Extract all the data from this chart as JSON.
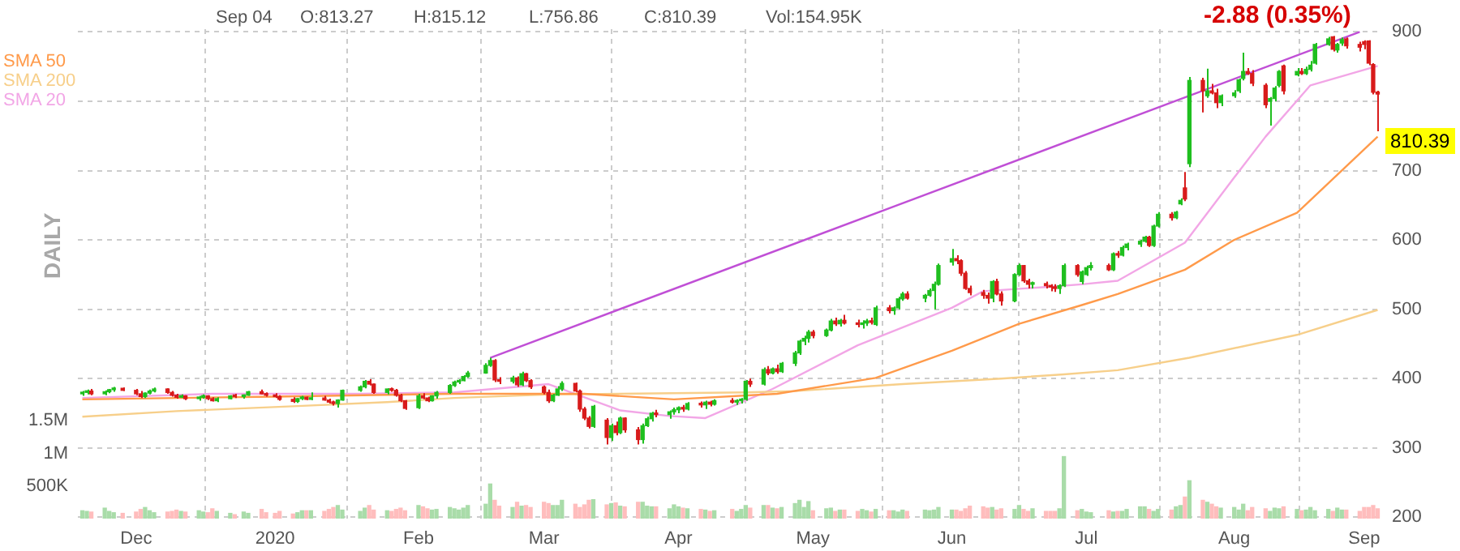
{
  "chart_data": {
    "type": "candlestick",
    "annotations": [
      "Sep 04",
      "O:813.27",
      "H:815.12",
      "L:756.86",
      "C:810.39",
      "Vol:154.95K",
      "-2.88 (0.35%)",
      "810.39",
      "DAILY"
    ],
    "x": [
      "2019-11-20",
      "2019-11-21",
      "2019-11-22",
      "2019-11-25",
      "2019-11-26",
      "2019-11-27",
      "2019-11-29",
      "2019-12-02",
      "2019-12-03",
      "2019-12-04",
      "2019-12-05",
      "2019-12-06",
      "2019-12-09",
      "2019-12-10",
      "2019-12-11",
      "2019-12-12",
      "2019-12-13",
      "2019-12-16",
      "2019-12-17",
      "2019-12-18",
      "2019-12-19",
      "2019-12-20",
      "2019-12-23",
      "2019-12-24",
      "2019-12-26",
      "2019-12-27",
      "2019-12-30",
      "2019-12-31",
      "2020-01-02",
      "2020-01-03",
      "2020-01-06",
      "2020-01-07",
      "2020-01-08",
      "2020-01-09",
      "2020-01-10",
      "2020-01-13",
      "2020-01-14",
      "2020-01-15",
      "2020-01-16",
      "2020-01-17",
      "2020-01-21",
      "2020-01-22",
      "2020-01-23",
      "2020-01-24",
      "2020-01-27",
      "2020-01-28",
      "2020-01-29",
      "2020-01-30",
      "2020-01-31",
      "2020-02-03",
      "2020-02-04",
      "2020-02-05",
      "2020-02-06",
      "2020-02-07",
      "2020-02-10",
      "2020-02-11",
      "2020-02-12",
      "2020-02-13",
      "2020-02-14",
      "2020-02-18",
      "2020-02-19",
      "2020-02-20",
      "2020-02-21",
      "2020-02-24",
      "2020-02-25",
      "2020-02-26",
      "2020-02-27",
      "2020-02-28",
      "2020-03-02",
      "2020-03-03",
      "2020-03-04",
      "2020-03-05",
      "2020-03-06",
      "2020-03-09",
      "2020-03-10",
      "2020-03-11",
      "2020-03-12",
      "2020-03-13",
      "2020-03-16",
      "2020-03-17",
      "2020-03-18",
      "2020-03-19",
      "2020-03-20",
      "2020-03-23",
      "2020-03-24",
      "2020-03-25",
      "2020-03-26",
      "2020-03-27",
      "2020-03-30",
      "2020-03-31",
      "2020-04-01",
      "2020-04-02",
      "2020-04-03",
      "2020-04-06",
      "2020-04-07",
      "2020-04-08",
      "2020-04-09",
      "2020-04-13",
      "2020-04-14",
      "2020-04-15",
      "2020-04-16",
      "2020-04-17",
      "2020-04-20",
      "2020-04-21",
      "2020-04-22",
      "2020-04-23",
      "2020-04-24",
      "2020-04-27",
      "2020-04-28",
      "2020-04-29",
      "2020-04-30",
      "2020-05-01",
      "2020-05-04",
      "2020-05-05",
      "2020-05-06",
      "2020-05-07",
      "2020-05-08",
      "2020-05-11",
      "2020-05-12",
      "2020-05-13",
      "2020-05-14",
      "2020-05-15",
      "2020-05-18",
      "2020-05-19",
      "2020-05-20",
      "2020-05-21",
      "2020-05-22",
      "2020-05-26",
      "2020-05-27",
      "2020-05-28",
      "2020-05-29",
      "2020-06-01",
      "2020-06-02",
      "2020-06-03",
      "2020-06-04",
      "2020-06-05",
      "2020-06-08",
      "2020-06-09",
      "2020-06-10",
      "2020-06-11",
      "2020-06-12",
      "2020-06-15",
      "2020-06-16",
      "2020-06-17",
      "2020-06-18",
      "2020-06-19",
      "2020-06-22",
      "2020-06-23",
      "2020-06-24",
      "2020-06-25",
      "2020-06-26",
      "2020-06-29",
      "2020-06-30",
      "2020-07-01",
      "2020-07-02",
      "2020-07-06",
      "2020-07-07",
      "2020-07-08",
      "2020-07-09",
      "2020-07-10",
      "2020-07-13",
      "2020-07-14",
      "2020-07-15",
      "2020-07-16",
      "2020-07-17",
      "2020-07-20",
      "2020-07-21",
      "2020-07-22",
      "2020-07-23",
      "2020-07-24",
      "2020-07-27",
      "2020-07-28",
      "2020-07-29",
      "2020-07-30",
      "2020-07-31",
      "2020-08-03",
      "2020-08-04",
      "2020-08-05",
      "2020-08-06",
      "2020-08-07",
      "2020-08-10",
      "2020-08-11",
      "2020-08-12",
      "2020-08-13",
      "2020-08-14",
      "2020-08-17",
      "2020-08-18",
      "2020-08-19",
      "2020-08-20",
      "2020-08-21",
      "2020-08-24",
      "2020-08-25",
      "2020-08-26",
      "2020-08-27",
      "2020-08-28",
      "2020-08-31",
      "2020-09-01",
      "2020-09-02",
      "2020-09-03",
      "2020-09-04"
    ],
    "ohlc": [
      [
        378,
        382,
        375,
        380
      ],
      [
        380,
        384,
        377,
        382
      ],
      [
        382,
        385,
        376,
        378
      ],
      [
        378,
        383,
        376,
        381
      ],
      [
        381,
        385,
        379,
        384
      ],
      [
        384,
        388,
        381,
        386
      ],
      [
        386,
        387,
        382,
        383
      ],
      [
        383,
        385,
        376,
        378
      ],
      [
        378,
        382,
        372,
        374
      ],
      [
        374,
        380,
        372,
        379
      ],
      [
        379,
        384,
        377,
        382
      ],
      [
        382,
        387,
        380,
        385
      ],
      [
        385,
        386,
        378,
        380
      ],
      [
        380,
        382,
        374,
        376
      ],
      [
        376,
        378,
        371,
        373
      ],
      [
        373,
        377,
        372,
        375
      ],
      [
        375,
        376,
        369,
        371
      ],
      [
        371,
        375,
        368,
        373
      ],
      [
        373,
        377,
        371,
        375
      ],
      [
        375,
        376,
        369,
        371
      ],
      [
        371,
        373,
        367,
        368
      ],
      [
        368,
        373,
        366,
        371
      ],
      [
        371,
        376,
        370,
        375
      ],
      [
        375,
        378,
        372,
        374
      ],
      [
        374,
        377,
        371,
        376
      ],
      [
        376,
        382,
        375,
        381
      ],
      [
        381,
        384,
        377,
        378
      ],
      [
        378,
        380,
        374,
        376
      ],
      [
        376,
        379,
        372,
        374
      ],
      [
        374,
        376,
        368,
        370
      ],
      [
        370,
        373,
        365,
        367
      ],
      [
        367,
        372,
        365,
        371
      ],
      [
        371,
        375,
        369,
        373
      ],
      [
        373,
        374,
        369,
        370
      ],
      [
        370,
        380,
        369,
        372
      ],
      [
        372,
        375,
        368,
        369
      ],
      [
        369,
        371,
        364,
        366
      ],
      [
        366,
        368,
        361,
        364
      ],
      [
        364,
        370,
        358,
        369
      ],
      [
        369,
        384,
        368,
        383
      ],
      [
        383,
        390,
        381,
        388
      ],
      [
        388,
        398,
        386,
        396
      ],
      [
        396,
        399,
        390,
        392
      ],
      [
        392,
        393,
        378,
        380
      ],
      [
        380,
        386,
        377,
        385
      ],
      [
        385,
        387,
        381,
        383
      ],
      [
        383,
        385,
        374,
        376
      ],
      [
        376,
        378,
        366,
        368
      ],
      [
        368,
        369,
        355,
        357
      ],
      [
        358,
        378,
        356,
        375
      ],
      [
        375,
        379,
        370,
        372
      ],
      [
        372,
        374,
        366,
        368
      ],
      [
        368,
        376,
        367,
        375
      ],
      [
        375,
        382,
        371,
        380
      ],
      [
        380,
        392,
        378,
        390
      ],
      [
        390,
        397,
        388,
        395
      ],
      [
        395,
        399,
        392,
        397
      ],
      [
        397,
        405,
        396,
        403
      ],
      [
        403,
        411,
        401,
        408
      ],
      [
        408,
        422,
        407,
        419
      ],
      [
        419,
        430,
        417,
        426
      ],
      [
        426,
        428,
        395,
        398
      ],
      [
        398,
        402,
        392,
        396
      ],
      [
        396,
        404,
        393,
        401
      ],
      [
        401,
        403,
        388,
        391
      ],
      [
        391,
        410,
        389,
        407
      ],
      [
        407,
        408,
        395,
        397
      ],
      [
        397,
        399,
        385,
        388
      ],
      [
        388,
        390,
        377,
        380
      ],
      [
        380,
        384,
        365,
        368
      ],
      [
        368,
        378,
        366,
        376
      ],
      [
        376,
        389,
        375,
        385
      ],
      [
        385,
        396,
        382,
        393
      ],
      [
        393,
        394,
        380,
        382
      ],
      [
        382,
        384,
        352,
        356
      ],
      [
        356,
        359,
        340,
        343
      ],
      [
        343,
        346,
        328,
        331
      ],
      [
        331,
        362,
        329,
        360
      ],
      [
        340,
        343,
        305,
        315
      ],
      [
        315,
        335,
        310,
        332
      ],
      [
        332,
        338,
        318,
        322
      ],
      [
        322,
        345,
        320,
        343
      ],
      [
        343,
        344,
        322,
        326
      ],
      [
        326,
        330,
        305,
        312
      ],
      [
        312,
        335,
        306,
        332
      ],
      [
        332,
        345,
        330,
        342
      ],
      [
        342,
        352,
        338,
        350
      ],
      [
        350,
        355,
        344,
        348
      ],
      [
        348,
        354,
        342,
        352
      ],
      [
        352,
        358,
        348,
        355
      ],
      [
        355,
        360,
        350,
        358
      ],
      [
        358,
        362,
        352,
        356
      ],
      [
        356,
        366,
        354,
        364
      ],
      [
        364,
        367,
        358,
        362
      ],
      [
        362,
        368,
        356,
        366
      ],
      [
        366,
        368,
        360,
        363
      ],
      [
        363,
        370,
        361,
        368
      ],
      [
        368,
        372,
        364,
        366
      ],
      [
        366,
        370,
        362,
        368
      ],
      [
        368,
        372,
        364,
        370
      ],
      [
        370,
        398,
        368,
        396
      ],
      [
        396,
        400,
        388,
        392
      ],
      [
        392,
        416,
        390,
        413
      ],
      [
        413,
        418,
        405,
        408
      ],
      [
        408,
        416,
        406,
        414
      ],
      [
        414,
        420,
        407,
        410
      ],
      [
        410,
        424,
        408,
        422
      ],
      [
        422,
        440,
        418,
        437
      ],
      [
        437,
        456,
        434,
        454
      ],
      [
        454,
        462,
        448,
        458
      ],
      [
        458,
        470,
        452,
        467
      ],
      [
        467,
        470,
        458,
        462
      ],
      [
        462,
        472,
        460,
        470
      ],
      [
        470,
        486,
        468,
        483
      ],
      [
        483,
        488,
        476,
        479
      ],
      [
        479,
        486,
        475,
        484
      ],
      [
        484,
        492,
        478,
        480
      ],
      [
        480,
        485,
        474,
        478
      ],
      [
        478,
        484,
        472,
        480
      ],
      [
        480,
        486,
        476,
        483
      ],
      [
        483,
        488,
        478,
        481
      ],
      [
        478,
        505,
        476,
        502
      ],
      [
        502,
        506,
        494,
        498
      ],
      [
        498,
        504,
        492,
        502
      ],
      [
        502,
        518,
        500,
        515
      ],
      [
        515,
        525,
        512,
        522
      ],
      [
        522,
        526,
        514,
        516
      ],
      [
        516,
        522,
        510,
        520
      ],
      [
        520,
        530,
        518,
        527
      ],
      [
        527,
        540,
        500,
        536
      ],
      [
        536,
        566,
        534,
        563
      ],
      [
        568,
        587,
        563,
        573
      ],
      [
        573,
        578,
        565,
        570
      ],
      [
        570,
        572,
        548,
        552
      ],
      [
        552,
        555,
        528,
        530
      ],
      [
        530,
        534,
        520,
        524
      ],
      [
        524,
        528,
        515,
        520
      ],
      [
        520,
        524,
        508,
        516
      ],
      [
        516,
        542,
        510,
        540
      ],
      [
        540,
        544,
        520,
        522
      ],
      [
        522,
        526,
        505,
        512
      ],
      [
        512,
        552,
        510,
        550
      ],
      [
        550,
        566,
        548,
        563
      ],
      [
        563,
        564,
        538,
        541
      ],
      [
        541,
        544,
        530,
        536
      ],
      [
        536,
        540,
        530,
        537
      ],
      [
        537,
        540,
        530,
        534
      ],
      [
        534,
        536,
        526,
        532
      ],
      [
        532,
        536,
        525,
        530
      ],
      [
        530,
        536,
        522,
        534
      ],
      [
        534,
        566,
        532,
        563
      ],
      [
        563,
        565,
        547,
        550
      ],
      [
        540,
        556,
        536,
        554
      ],
      [
        550,
        563,
        548,
        560
      ],
      [
        560,
        568,
        556,
        563
      ],
      [
        563,
        566,
        555,
        557
      ],
      [
        557,
        582,
        555,
        580
      ],
      [
        580,
        584,
        574,
        578
      ],
      [
        578,
        592,
        576,
        589
      ],
      [
        589,
        596,
        585,
        594
      ],
      [
        594,
        600,
        590,
        598
      ],
      [
        598,
        606,
        596,
        604
      ],
      [
        604,
        606,
        590,
        592
      ],
      [
        592,
        622,
        590,
        620
      ],
      [
        620,
        640,
        618,
        637
      ],
      [
        637,
        640,
        628,
        632
      ],
      [
        632,
        642,
        630,
        640
      ],
      [
        652,
        660,
        650,
        657
      ],
      [
        675,
        698,
        656,
        659
      ],
      [
        710,
        835,
        705,
        830
      ],
      [
        830,
        834,
        784,
        815
      ],
      [
        808,
        847,
        805,
        815
      ],
      [
        815,
        825,
        810,
        812
      ],
      [
        812,
        818,
        790,
        798
      ],
      [
        798,
        810,
        793,
        808
      ],
      [
        808,
        816,
        805,
        812
      ],
      [
        815,
        833,
        812,
        831
      ],
      [
        833,
        870,
        830,
        843
      ],
      [
        843,
        848,
        838,
        840
      ],
      [
        840,
        845,
        822,
        826
      ],
      [
        823,
        826,
        790,
        795
      ],
      [
        800,
        806,
        765,
        804
      ],
      [
        804,
        822,
        800,
        819
      ],
      [
        823,
        845,
        820,
        843
      ],
      [
        851,
        853,
        810,
        815
      ],
      [
        838,
        848,
        836,
        843
      ],
      [
        843,
        848,
        838,
        840
      ],
      [
        840,
        850,
        838,
        846
      ],
      [
        846,
        858,
        843,
        852
      ],
      [
        855,
        884,
        853,
        882
      ],
      [
        882,
        893,
        880,
        890
      ],
      [
        893,
        894,
        872,
        875
      ],
      [
        874,
        884,
        870,
        882
      ],
      [
        884,
        892,
        880,
        889
      ],
      [
        890,
        892,
        876,
        880
      ],
      [
        882,
        886,
        872,
        878
      ],
      [
        886,
        888,
        875,
        882
      ],
      [
        887,
        888,
        852,
        855
      ],
      [
        853,
        855,
        810,
        813
      ],
      [
        813.27,
        815.12,
        756.86,
        810.39
      ]
    ],
    "colors": [
      "#1fbf1f",
      "#1fbf1f",
      "#d81b1b",
      "#1fbf1f",
      "#1fbf1f",
      "#1fbf1f",
      "#d81b1b",
      "#d81b1b",
      "#d81b1b",
      "#1fbf1f",
      "#1fbf1f",
      "#1fbf1f",
      "#d81b1b",
      "#d81b1b",
      "#d81b1b",
      "#1fbf1f",
      "#d81b1b",
      "#1fbf1f",
      "#1fbf1f",
      "#d81b1b",
      "#d81b1b",
      "#1fbf1f",
      "#1fbf1f",
      "#d81b1b",
      "#1fbf1f",
      "#1fbf1f",
      "#d81b1b",
      "#d81b1b",
      "#d81b1b",
      "#d81b1b",
      "#d81b1b",
      "#1fbf1f",
      "#1fbf1f",
      "#d81b1b",
      "#1fbf1f",
      "#d81b1b",
      "#d81b1b",
      "#d81b1b",
      "#1fbf1f",
      "#1fbf1f",
      "#1fbf1f",
      "#1fbf1f",
      "#d81b1b",
      "#d81b1b",
      "#1fbf1f",
      "#d81b1b",
      "#d81b1b",
      "#d81b1b",
      "#d81b1b",
      "#1fbf1f",
      "#d81b1b",
      "#d81b1b",
      "#1fbf1f",
      "#1fbf1f",
      "#1fbf1f",
      "#1fbf1f",
      "#1fbf1f",
      "#1fbf1f",
      "#1fbf1f",
      "#1fbf1f",
      "#1fbf1f",
      "#d81b1b",
      "#d81b1b",
      "#1fbf1f",
      "#d81b1b",
      "#1fbf1f",
      "#d81b1b",
      "#d81b1b",
      "#d81b1b",
      "#d81b1b",
      "#1fbf1f",
      "#1fbf1f",
      "#1fbf1f",
      "#d81b1b",
      "#d81b1b",
      "#d81b1b",
      "#d81b1b",
      "#1fbf1f",
      "#d81b1b",
      "#1fbf1f",
      "#d81b1b",
      "#1fbf1f",
      "#d81b1b",
      "#d81b1b",
      "#1fbf1f",
      "#1fbf1f",
      "#1fbf1f",
      "#d81b1b",
      "#1fbf1f",
      "#1fbf1f",
      "#1fbf1f",
      "#d81b1b",
      "#1fbf1f",
      "#d81b1b",
      "#1fbf1f",
      "#d81b1b",
      "#1fbf1f",
      "#d81b1b",
      "#1fbf1f",
      "#1fbf1f",
      "#1fbf1f",
      "#d81b1b",
      "#1fbf1f",
      "#d81b1b",
      "#1fbf1f",
      "#d81b1b",
      "#1fbf1f",
      "#1fbf1f",
      "#1fbf1f",
      "#1fbf1f",
      "#1fbf1f",
      "#d81b1b",
      "#1fbf1f",
      "#1fbf1f",
      "#d81b1b",
      "#1fbf1f",
      "#d81b1b",
      "#d81b1b",
      "#1fbf1f",
      "#1fbf1f",
      "#d81b1b",
      "#1fbf1f",
      "#d81b1b",
      "#1fbf1f",
      "#1fbf1f",
      "#1fbf1f",
      "#d81b1b",
      "#1fbf1f",
      "#1fbf1f",
      "#1fbf1f",
      "#1fbf1f",
      "#1fbf1f",
      "#d81b1b",
      "#d81b1b",
      "#d81b1b",
      "#d81b1b",
      "#d81b1b",
      "#d81b1b",
      "#1fbf1f",
      "#d81b1b",
      "#d81b1b",
      "#1fbf1f",
      "#1fbf1f",
      "#d81b1b",
      "#d81b1b",
      "#1fbf1f",
      "#d81b1b",
      "#d81b1b",
      "#d81b1b",
      "#1fbf1f",
      "#1fbf1f",
      "#d81b1b",
      "#1fbf1f",
      "#1fbf1f",
      "#1fbf1f",
      "#d81b1b",
      "#1fbf1f",
      "#d81b1b",
      "#1fbf1f",
      "#1fbf1f",
      "#1fbf1f",
      "#1fbf1f",
      "#d81b1b",
      "#1fbf1f",
      "#1fbf1f",
      "#d81b1b",
      "#1fbf1f",
      "#1fbf1f",
      "#d81b1b",
      "#1fbf1f",
      "#d81b1b",
      "#1fbf1f",
      "#d81b1b",
      "#d81b1b",
      "#1fbf1f",
      "#1fbf1f",
      "#1fbf1f",
      "#1fbf1f",
      "#d81b1b",
      "#d81b1b",
      "#d81b1b",
      "#1fbf1f",
      "#1fbf1f",
      "#1fbf1f",
      "#d81b1b",
      "#1fbf1f",
      "#d81b1b",
      "#1fbf1f",
      "#1fbf1f",
      "#1fbf1f",
      "#1fbf1f",
      "#d81b1b",
      "#1fbf1f",
      "#1fbf1f",
      "#d81b1b",
      "#d81b1b",
      "#d81b1b",
      "#d81b1b",
      "#d81b1b",
      "#d81b1b"
    ],
    "series": [
      {
        "type": "bar",
        "axis": "y2",
        "values": [
          120000,
          110000,
          100000,
          160000,
          110000,
          90000,
          80000,
          100000,
          140000,
          170000,
          120000,
          90000,
          100000,
          110000,
          130000,
          110000,
          100000,
          120000,
          100000,
          90000,
          150000,
          110000,
          80000,
          60000,
          100000,
          80000,
          140000,
          90000,
          80000,
          110000,
          70000,
          90000,
          120000,
          120000,
          120000,
          110000,
          140000,
          170000,
          200000,
          130000,
          110000,
          160000,
          200000,
          130000,
          120000,
          110000,
          140000,
          160000,
          120000,
          200000,
          180000,
          150000,
          130000,
          140000,
          170000,
          150000,
          130000,
          160000,
          200000,
          220000,
          530000,
          280000,
          190000,
          170000,
          250000,
          190000,
          200000,
          170000,
          250000,
          230000,
          200000,
          200000,
          280000,
          220000,
          170000,
          210000,
          280000,
          290000,
          210000,
          230000,
          240000,
          190000,
          180000,
          250000,
          250000,
          190000,
          180000,
          180000,
          150000,
          210000,
          180000,
          160000,
          150000,
          140000,
          130000,
          110000,
          120000,
          140000,
          110000,
          140000,
          200000,
          160000,
          200000,
          200000,
          160000,
          150000,
          170000,
          230000,
          280000,
          170000,
          260000,
          120000,
          150000,
          160000,
          110000,
          130000,
          130000,
          110000,
          140000,
          120000,
          100000,
          140000,
          120000,
          120000,
          100000,
          130000,
          110000,
          130000,
          120000,
          130000,
          170000,
          130000,
          130000,
          110000,
          150000,
          190000,
          180000,
          160000,
          170000,
          130000,
          150000,
          140000,
          200000,
          140000,
          110000,
          150000,
          110000,
          110000,
          110000,
          150000,
          950000,
          120000,
          140000,
          100000,
          90000,
          120000,
          100000,
          110000,
          110000,
          140000,
          180000,
          180000,
          140000,
          110000,
          140000,
          130000,
          180000,
          200000,
          330000,
          580000,
          280000,
          250000,
          220000,
          180000,
          160000,
          170000,
          130000,
          220000,
          120000,
          170000,
          150000,
          110000,
          160000,
          150000,
          180000,
          140000,
          120000,
          130000,
          170000,
          120000,
          140000,
          110000,
          160000,
          130000,
          130000,
          110000,
          170000,
          170000,
          200000,
          150000
        ],
        "colors": [
          "#a9dca9",
          "#a9dca9",
          "#ffbdbd",
          "#a9dca9",
          "#a9dca9",
          "#a9dca9",
          "#ffbdbd",
          "#ffbdbd",
          "#ffbdbd",
          "#a9dca9",
          "#a9dca9",
          "#a9dca9",
          "#ffbdbd",
          "#ffbdbd",
          "#ffbdbd",
          "#a9dca9",
          "#ffbdbd",
          "#a9dca9",
          "#a9dca9",
          "#ffbdbd",
          "#ffbdbd",
          "#a9dca9",
          "#a9dca9",
          "#ffbdbd",
          "#a9dca9",
          "#a9dca9",
          "#ffbdbd",
          "#ffbdbd",
          "#ffbdbd",
          "#ffbdbd",
          "#ffbdbd",
          "#a9dca9",
          "#a9dca9",
          "#ffbdbd",
          "#a9dca9",
          "#ffbdbd",
          "#ffbdbd",
          "#ffbdbd",
          "#a9dca9",
          "#a9dca9",
          "#a9dca9",
          "#a9dca9",
          "#ffbdbd",
          "#ffbdbd",
          "#a9dca9",
          "#ffbdbd",
          "#ffbdbd",
          "#ffbdbd",
          "#ffbdbd",
          "#a9dca9",
          "#ffbdbd",
          "#ffbdbd",
          "#a9dca9",
          "#a9dca9",
          "#a9dca9",
          "#a9dca9",
          "#a9dca9",
          "#a9dca9",
          "#a9dca9",
          "#a9dca9",
          "#a9dca9",
          "#ffbdbd",
          "#ffbdbd",
          "#a9dca9",
          "#ffbdbd",
          "#a9dca9",
          "#ffbdbd",
          "#ffbdbd",
          "#ffbdbd",
          "#ffbdbd",
          "#a9dca9",
          "#a9dca9",
          "#a9dca9",
          "#ffbdbd",
          "#ffbdbd",
          "#ffbdbd",
          "#ffbdbd",
          "#a9dca9",
          "#ffbdbd",
          "#a9dca9",
          "#ffbdbd",
          "#a9dca9",
          "#ffbdbd",
          "#ffbdbd",
          "#a9dca9",
          "#a9dca9",
          "#a9dca9",
          "#ffbdbd",
          "#a9dca9",
          "#a9dca9",
          "#a9dca9",
          "#ffbdbd",
          "#a9dca9",
          "#ffbdbd",
          "#a9dca9",
          "#ffbdbd",
          "#a9dca9",
          "#ffbdbd",
          "#a9dca9",
          "#a9dca9",
          "#a9dca9",
          "#ffbdbd",
          "#a9dca9",
          "#ffbdbd",
          "#a9dca9",
          "#ffbdbd",
          "#a9dca9",
          "#a9dca9",
          "#a9dca9",
          "#a9dca9",
          "#a9dca9",
          "#ffbdbd",
          "#a9dca9",
          "#a9dca9",
          "#ffbdbd",
          "#a9dca9",
          "#ffbdbd",
          "#ffbdbd",
          "#a9dca9",
          "#a9dca9",
          "#ffbdbd",
          "#a9dca9",
          "#ffbdbd",
          "#a9dca9",
          "#a9dca9",
          "#a9dca9",
          "#ffbdbd",
          "#a9dca9",
          "#a9dca9",
          "#a9dca9",
          "#a9dca9",
          "#a9dca9",
          "#ffbdbd",
          "#ffbdbd",
          "#ffbdbd",
          "#ffbdbd",
          "#ffbdbd",
          "#ffbdbd",
          "#a9dca9",
          "#ffbdbd",
          "#ffbdbd",
          "#a9dca9",
          "#a9dca9",
          "#ffbdbd",
          "#ffbdbd",
          "#a9dca9",
          "#ffbdbd",
          "#ffbdbd",
          "#ffbdbd",
          "#a9dca9",
          "#a9dca9",
          "#ffbdbd",
          "#a9dca9",
          "#a9dca9",
          "#a9dca9",
          "#ffbdbd",
          "#a9dca9",
          "#ffbdbd",
          "#a9dca9",
          "#a9dca9",
          "#a9dca9",
          "#a9dca9",
          "#ffbdbd",
          "#a9dca9",
          "#a9dca9",
          "#ffbdbd",
          "#a9dca9",
          "#a9dca9",
          "#ffbdbd",
          "#a9dca9",
          "#ffbdbd",
          "#a9dca9",
          "#ffbdbd",
          "#ffbdbd",
          "#a9dca9",
          "#a9dca9",
          "#a9dca9",
          "#a9dca9",
          "#ffbdbd",
          "#ffbdbd",
          "#ffbdbd",
          "#a9dca9",
          "#a9dca9",
          "#a9dca9",
          "#ffbdbd",
          "#a9dca9",
          "#ffbdbd",
          "#a9dca9",
          "#a9dca9",
          "#a9dca9",
          "#a9dca9",
          "#ffbdbd",
          "#a9dca9",
          "#a9dca9",
          "#ffbdbd",
          "#ffbdbd",
          "#ffbdbd",
          "#ffbdbd",
          "#ffbdbd",
          "#ffbdbd"
        ]
      },
      {
        "type": "line",
        "name": "SMA 50",
        "color": "#ff9a4a",
        "x": [
          "2019-11-20",
          "2020-01-02",
          "2020-02-11",
          "2020-03-11",
          "2020-03-31",
          "2020-04-23",
          "2020-05-15",
          "2020-06-01",
          "2020-06-16",
          "2020-06-30",
          "2020-07-08",
          "2020-07-23",
          "2020-08-03",
          "2020-08-17",
          "2020-09-04"
        ],
        "values": [
          370,
          374,
          378,
          378,
          370,
          378,
          401,
          440,
          479,
          506,
          522,
          557,
          600,
          639,
          749
        ]
      },
      {
        "type": "line",
        "name": "SMA 200",
        "color": "#f7cf8a",
        "x": [
          "2019-11-20",
          "2019-12-11",
          "2020-01-06",
          "2020-01-27",
          "2020-02-11",
          "2020-03-03",
          "2020-04-16",
          "2020-04-27",
          "2020-05-21",
          "2020-06-12",
          "2020-06-26",
          "2020-07-08",
          "2020-07-24",
          "2020-08-17",
          "2020-09-04"
        ],
        "values": [
          345,
          353,
          360,
          366,
          372,
          377,
          380,
          382,
          392,
          400,
          406,
          412,
          430,
          463,
          499
        ]
      },
      {
        "type": "line",
        "name": "SMA 20",
        "color": "#f2a6e6",
        "x": [
          "2019-11-20",
          "2019-12-19",
          "2020-01-21",
          "2020-02-11",
          "2020-03-03",
          "2020-03-19",
          "2020-03-30",
          "2020-04-07",
          "2020-04-22",
          "2020-05-11",
          "2020-06-01",
          "2020-06-08",
          "2020-06-22",
          "2020-06-30",
          "2020-07-08",
          "2020-07-23",
          "2020-08-03",
          "2020-08-10",
          "2020-08-20",
          "2020-09-04"
        ],
        "values": [
          372,
          378,
          378,
          380,
          392,
          354,
          346,
          343,
          385,
          448,
          502,
          526,
          532,
          536,
          541,
          596,
          690,
          749,
          823,
          851
        ]
      },
      {
        "type": "line",
        "color": "#c04fd6",
        "x": [
          "2020-02-19",
          "2020-08-31"
        ],
        "values": [
          430,
          900
        ]
      }
    ],
    "xlim": [
      "2019-11-19",
      "2020-09-05"
    ],
    "xticks": [
      {
        "value": "2019-12-02",
        "label": "Dec"
      },
      {
        "value": "2020-01-02",
        "label": "2020"
      },
      {
        "value": "2020-02-03",
        "label": "Feb"
      },
      {
        "value": "2020-03-02",
        "label": "Mar"
      },
      {
        "value": "2020-04-01",
        "label": "Apr"
      },
      {
        "value": "2020-05-01",
        "label": "May"
      },
      {
        "value": "2020-06-01",
        "label": "Jun"
      },
      {
        "value": "2020-07-01",
        "label": "Jul"
      },
      {
        "value": "2020-08-03",
        "label": "Aug"
      },
      {
        "value": "2020-09-01",
        "label": "Sep"
      }
    ],
    "ylim": [
      198,
      904
    ],
    "yticks": [
      200,
      300,
      400,
      500,
      600,
      700,
      {
        "value": 800,
        "label": null
      },
      900
    ],
    "y2lim": [
      0,
      7500000
    ],
    "y2ticks": [
      {
        "value": 500000,
        "label": "500K"
      },
      {
        "value": 1000000,
        "label": "1M"
      },
      {
        "value": 1500000,
        "label": "1.5M"
      }
    ],
    "grid": true,
    "legend": "top left"
  }
}
